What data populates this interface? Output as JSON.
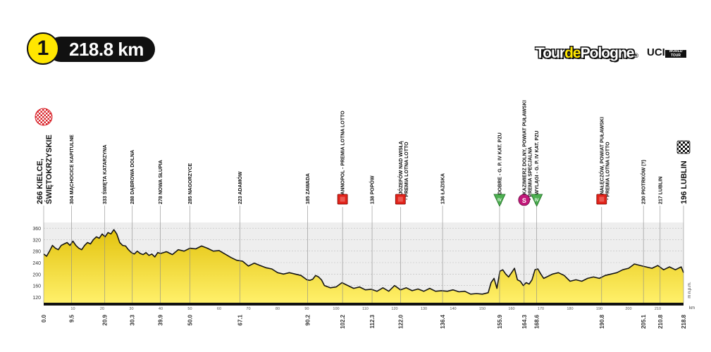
{
  "stage": {
    "number": "1",
    "distance": "218.8 km"
  },
  "logo": {
    "part1": "Tour",
    "part2": "de",
    "part3": "Pologne",
    "reg": "®",
    "uci": "UCI",
    "uci_tag1": "WORLD",
    "uci_tag2": "TOUR"
  },
  "colors": {
    "fill_top": "#e3c30e",
    "fill_bottom": "#fff06a",
    "outline": "#151515",
    "sprint": "#e2231a",
    "kom": "#4caf50",
    "special": "#c2187a",
    "band": "#eeeeee"
  },
  "chart_data": {
    "type": "area",
    "ylabel": "m n.p.m.",
    "xlabel": "km",
    "xlim": [
      0,
      218.8
    ],
    "ylim": [
      100,
      380
    ],
    "y_ticks": [
      120,
      160,
      200,
      240,
      280,
      320,
      360
    ],
    "x_ticks": [
      "10",
      "20",
      "30",
      "40",
      "50",
      "60",
      "70",
      "80",
      "90",
      "100",
      "110",
      "120",
      "130",
      "140",
      "150",
      "160",
      "170",
      "180",
      "190",
      "200",
      "210"
    ],
    "x_tick_values": [
      10,
      20,
      30,
      40,
      50,
      60,
      70,
      80,
      90,
      100,
      110,
      120,
      130,
      140,
      150,
      160,
      170,
      180,
      190,
      200,
      210
    ],
    "km_marks": [
      "0.0",
      "9.5",
      "20.9",
      "30.3",
      "39.9",
      "50.0",
      "67.1",
      "90.2",
      "102.2",
      "112.3",
      "122.0",
      "136.4",
      "155.9",
      "164.3",
      "168.6",
      "190.8",
      "205.1",
      "210.8",
      "218.8"
    ],
    "km_mark_values": [
      0.0,
      9.5,
      20.9,
      30.3,
      39.9,
      50.0,
      67.1,
      90.2,
      102.2,
      112.3,
      122.0,
      136.4,
      155.9,
      164.3,
      168.6,
      190.8,
      205.1,
      210.8,
      218.8
    ],
    "profile": {
      "x": [
        0,
        1,
        2,
        3,
        4,
        5,
        6,
        7,
        8,
        9,
        10,
        11,
        12,
        13,
        14,
        15,
        16,
        17,
        18,
        19,
        20,
        21,
        22,
        23,
        24,
        25,
        26,
        27,
        28,
        29,
        30,
        31,
        32,
        33,
        34,
        35,
        36,
        37,
        38,
        39,
        40,
        42,
        44,
        46,
        48,
        50,
        52,
        54,
        56,
        58,
        60,
        62,
        64,
        66,
        68,
        70,
        72,
        74,
        76,
        78,
        80,
        82,
        84,
        86,
        88,
        90,
        91,
        92,
        93,
        94,
        95,
        96,
        98,
        100,
        102,
        104,
        106,
        108,
        110,
        112,
        114,
        116,
        118,
        120,
        122,
        124,
        126,
        128,
        130,
        132,
        134,
        136,
        138,
        140,
        142,
        144,
        146,
        148,
        150,
        152,
        153,
        154,
        155,
        156,
        157,
        158,
        159,
        160,
        161,
        162,
        163,
        164,
        165,
        166,
        167,
        168,
        169,
        170,
        171,
        172,
        174,
        176,
        178,
        180,
        182,
        184,
        186,
        188,
        190,
        192,
        194,
        196,
        198,
        200,
        202,
        204,
        206,
        208,
        210,
        212,
        214,
        216,
        218,
        218.8
      ],
      "y": [
        270,
        262,
        280,
        300,
        290,
        285,
        300,
        305,
        310,
        300,
        315,
        300,
        290,
        285,
        300,
        310,
        305,
        320,
        330,
        325,
        340,
        330,
        345,
        340,
        355,
        340,
        310,
        300,
        298,
        285,
        275,
        270,
        280,
        272,
        268,
        275,
        265,
        270,
        260,
        275,
        272,
        278,
        268,
        285,
        280,
        290,
        288,
        298,
        290,
        280,
        282,
        270,
        258,
        248,
        245,
        228,
        238,
        230,
        222,
        218,
        205,
        200,
        205,
        200,
        195,
        180,
        178,
        182,
        195,
        190,
        180,
        160,
        152,
        155,
        170,
        160,
        150,
        155,
        145,
        147,
        140,
        152,
        140,
        160,
        145,
        152,
        142,
        148,
        140,
        150,
        140,
        142,
        140,
        145,
        138,
        140,
        130,
        132,
        130,
        135,
        170,
        185,
        150,
        210,
        215,
        200,
        190,
        205,
        220,
        180,
        175,
        160,
        170,
        165,
        180,
        215,
        218,
        200,
        185,
        190,
        200,
        205,
        195,
        175,
        180,
        175,
        185,
        190,
        185,
        195,
        200,
        205,
        215,
        220,
        235,
        230,
        225,
        220,
        230,
        215,
        225,
        215,
        225,
        205
      ]
    },
    "places": [
      {
        "km": 0.0,
        "label": "266 KIELCE,",
        "label2": "ŚWIĘTOKRZYSKIE",
        "big": true,
        "icon": "start-flag"
      },
      {
        "km": 9.5,
        "label": "304 MĄCHOCICE KAPITULNE"
      },
      {
        "km": 20.9,
        "label": "333 ŚWIĘTA KATARZYNA"
      },
      {
        "km": 30.3,
        "label": "288 DĄBROWA DOLNA"
      },
      {
        "km": 39.9,
        "label": "278 NOWA SŁUPIA"
      },
      {
        "km": 50.0,
        "label": "285 NAGORZYCE"
      },
      {
        "km": 67.1,
        "label": "223 ADAMÓW"
      },
      {
        "km": 90.2,
        "label": "185 ZAWADA"
      },
      {
        "km": 102.2,
        "label": "182 ANNOPOL - PREMIA LOTNA LOTTO",
        "icon": "sprint"
      },
      {
        "km": 112.3,
        "label": "138 POPÓW"
      },
      {
        "km": 122.0,
        "label": "152 JÓZEFÓW NAD WISŁĄ",
        "label2": "- PREMIA LOTNA LOTTO",
        "icon": "sprint"
      },
      {
        "km": 136.4,
        "label": "136 ŁAZISKA"
      },
      {
        "km": 155.9,
        "label": "188 DOBRE - G. P. IV KAT. PZU",
        "icon": "kom"
      },
      {
        "km": 164.3,
        "label": "138 KAZIMIERZ DOLNY, POWIAT PUŁAWSKI",
        "label2": "- PREMIA SPECJALNA",
        "icon": "special"
      },
      {
        "km": 168.6,
        "label": "206 WYLĄGI - G. P. IV KAT. PZU",
        "icon": "kom"
      },
      {
        "km": 190.8,
        "label": "169 NAŁĘCZÓW, POWIAT PUŁAWSKI",
        "label2": "- PREMIA LOTNA LOTTO",
        "icon": "sprint"
      },
      {
        "km": 205.1,
        "label": "230 PIOTRKÓW (?)"
      },
      {
        "km": 210.8,
        "label": "217 LUBLIN"
      },
      {
        "km": 218.8,
        "label": "196 LUBLIN",
        "big": true,
        "icon": "finish-flag"
      }
    ],
    "icon_letters": {
      "kom": "IV",
      "special": "S"
    }
  }
}
